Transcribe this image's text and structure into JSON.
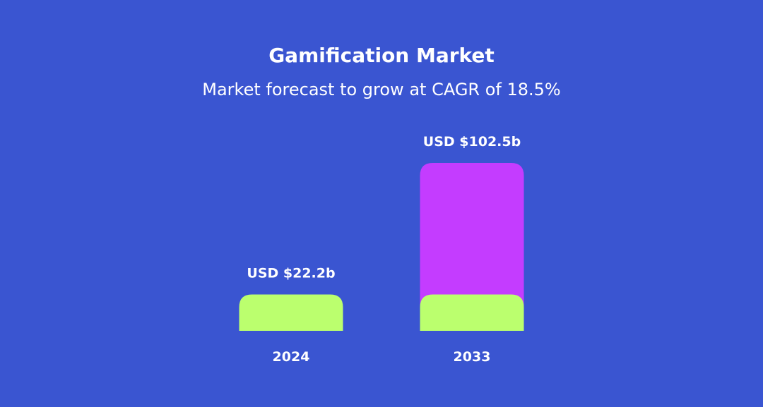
{
  "chart_data": {
    "type": "bar",
    "title": "Gamification Market",
    "subtitle": "Market forecast to grow at CAGR of 18.5%",
    "categories": [
      "2024",
      "2033"
    ],
    "values": [
      22.2,
      102.5
    ],
    "data_labels": [
      "USD $22.2b",
      "USD $102.5b"
    ],
    "base_value": 22.2,
    "xlabel": "",
    "ylabel": "",
    "ylim": [
      0,
      102.5
    ],
    "grid": false,
    "legend": "none",
    "colors": {
      "background": "#3a55d1",
      "base": "#bbff6e",
      "growth": "#c43cff",
      "text": "#ffffff"
    }
  }
}
